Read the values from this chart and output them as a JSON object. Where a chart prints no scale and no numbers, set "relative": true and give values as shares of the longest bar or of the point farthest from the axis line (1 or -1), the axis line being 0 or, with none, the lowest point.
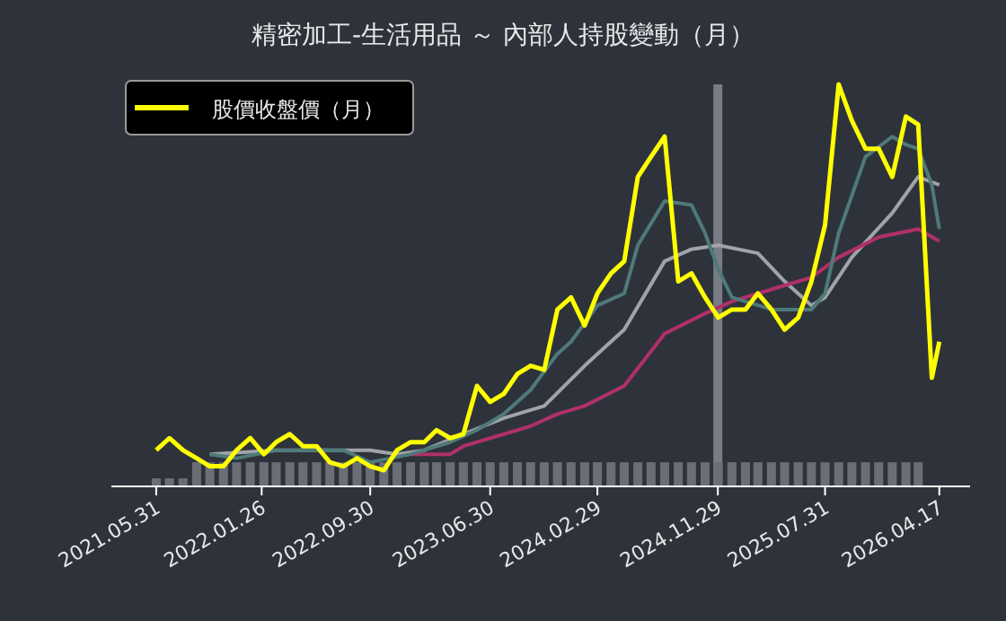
{
  "chart_data": {
    "type": "line",
    "title": "精密加工-生活用品 ～ 內部人持股變動（月）",
    "relative": true,
    "legend": "top left",
    "tick_labels": "x",
    "grid": false,
    "xlim": [
      "2021-02-18",
      "2026-06-26"
    ],
    "xticks": [
      {
        "value": "2021-05-31",
        "label": "2021.05.31"
      },
      {
        "value": "2022-01-26",
        "label": "2022.01.26"
      },
      {
        "value": "2022-09-30",
        "label": "2022.09.30"
      },
      {
        "value": "2023-06-30",
        "label": "2023.06.30"
      },
      {
        "value": "2024-02-29",
        "label": "2024.02.29"
      },
      {
        "value": "2024-11-29",
        "label": "2024.11.29"
      },
      {
        "value": "2025-07-31",
        "label": "2025.07.31"
      },
      {
        "value": "2026-04-17",
        "label": "2026.04.17"
      }
    ],
    "ref_lines": [
      {
        "axis": "x",
        "value": "2024-11-29",
        "color": "#787c84"
      }
    ],
    "series": [
      {
        "type": "bar",
        "color": "#6b6f75",
        "x": [
          "2021-05-31",
          "2021-06-30",
          "2021-07-31",
          "2021-08-31",
          "2021-09-30",
          "2021-10-31",
          "2021-11-30",
          "2021-12-31",
          "2022-01-31",
          "2022-02-28",
          "2022-03-31",
          "2022-04-30",
          "2022-05-31",
          "2022-06-30",
          "2022-07-31",
          "2022-08-31",
          "2022-09-30",
          "2022-10-31",
          "2022-11-30",
          "2022-12-31",
          "2023-01-31",
          "2023-02-28",
          "2023-03-31",
          "2023-04-30",
          "2023-05-31",
          "2023-06-30",
          "2023-07-31",
          "2023-08-31",
          "2023-09-30",
          "2023-10-31",
          "2023-11-30",
          "2023-12-31",
          "2024-01-31",
          "2024-02-29",
          "2024-03-31",
          "2024-04-30",
          "2024-05-31",
          "2024-06-30",
          "2024-07-31",
          "2024-08-31",
          "2024-09-30",
          "2024-10-31",
          "2024-11-30",
          "2024-12-31",
          "2025-01-31",
          "2025-02-28",
          "2025-03-31",
          "2025-04-30",
          "2025-05-31",
          "2025-06-30",
          "2025-07-31",
          "2025-08-31",
          "2025-09-30",
          "2025-10-31",
          "2025-11-30",
          "2025-12-31",
          "2026-01-31",
          "2026-02-28"
        ],
        "values": [
          0.02,
          0.02,
          0.02,
          0.06,
          0.06,
          0.06,
          0.06,
          0.06,
          0.06,
          0.06,
          0.06,
          0.06,
          0.06,
          0.06,
          0.06,
          0.06,
          0.06,
          0.06,
          0.06,
          0.06,
          0.06,
          0.06,
          0.06,
          0.06,
          0.06,
          0.06,
          0.06,
          0.06,
          0.06,
          0.06,
          0.06,
          0.06,
          0.06,
          0.06,
          0.06,
          0.06,
          0.06,
          0.06,
          0.06,
          0.06,
          0.06,
          0.06,
          0.06,
          0.06,
          0.06,
          0.06,
          0.06,
          0.06,
          0.06,
          0.06,
          0.06,
          0.06,
          0.06,
          0.06,
          0.06,
          0.06,
          0.06,
          0.06
        ]
      },
      {
        "type": "line",
        "color": "#a0a4a8",
        "x": [
          "2021-09-30",
          "2022-02-28",
          "2022-05-31",
          "2022-09-30",
          "2022-11-30",
          "2023-01-31",
          "2023-04-30",
          "2023-07-31",
          "2023-10-31",
          "2024-01-31",
          "2024-04-30",
          "2024-07-31",
          "2024-09-30",
          "2024-11-30",
          "2025-02-28",
          "2025-04-30",
          "2025-06-30",
          "2025-07-31",
          "2025-09-30",
          "2025-12-31",
          "2026-02-28",
          "2026-04-17"
        ],
        "values": [
          0.08,
          0.09,
          0.09,
          0.09,
          0.08,
          0.09,
          0.13,
          0.17,
          0.2,
          0.3,
          0.39,
          0.56,
          0.59,
          0.6,
          0.58,
          0.51,
          0.45,
          0.47,
          0.57,
          0.68,
          0.77,
          0.75
        ]
      },
      {
        "type": "line",
        "color": "#b0306a",
        "x": [
          "2022-12-31",
          "2023-03-31",
          "2023-04-30",
          "2023-07-31",
          "2023-09-30",
          "2023-11-30",
          "2024-01-31",
          "2024-04-30",
          "2024-07-31",
          "2024-10-31",
          "2024-12-31",
          "2025-03-31",
          "2025-06-30",
          "2025-08-31",
          "2025-11-30",
          "2026-02-28",
          "2026-04-17"
        ],
        "values": [
          0.08,
          0.08,
          0.1,
          0.13,
          0.15,
          0.18,
          0.2,
          0.25,
          0.38,
          0.43,
          0.46,
          0.49,
          0.52,
          0.57,
          0.62,
          0.64,
          0.61
        ]
      },
      {
        "type": "line",
        "color": "#4f7a7a",
        "x": [
          "2021-09-30",
          "2021-11-30",
          "2022-02-28",
          "2022-07-31",
          "2022-09-30",
          "2022-12-31",
          "2023-03-31",
          "2023-05-31",
          "2023-07-31",
          "2023-09-30",
          "2023-11-30",
          "2023-12-31",
          "2024-02-29",
          "2024-04-30",
          "2024-05-31",
          "2024-07-31",
          "2024-09-30",
          "2024-10-31",
          "2024-11-30",
          "2024-12-31",
          "2025-01-31",
          "2025-03-31",
          "2025-06-30",
          "2025-07-31",
          "2025-08-31",
          "2025-10-31",
          "2025-12-31",
          "2026-01-31",
          "2026-02-28",
          "2026-03-31",
          "2026-04-17"
        ],
        "values": [
          0.08,
          0.07,
          0.09,
          0.09,
          0.06,
          0.08,
          0.11,
          0.14,
          0.18,
          0.24,
          0.33,
          0.36,
          0.45,
          0.48,
          0.6,
          0.71,
          0.7,
          0.63,
          0.54,
          0.47,
          0.46,
          0.44,
          0.44,
          0.48,
          0.63,
          0.82,
          0.87,
          0.85,
          0.84,
          0.75,
          0.64
        ]
      },
      {
        "name": "股價收盤價（月）",
        "color": "#ffff00",
        "x": [
          "2021-05-31",
          "2021-06-30",
          "2021-07-31",
          "2021-08-31",
          "2021-09-30",
          "2021-10-31",
          "2021-11-30",
          "2021-12-31",
          "2022-01-31",
          "2022-02-28",
          "2022-03-31",
          "2022-04-30",
          "2022-05-31",
          "2022-06-30",
          "2022-07-31",
          "2022-08-31",
          "2022-09-30",
          "2022-10-31",
          "2022-11-30",
          "2022-12-31",
          "2023-01-31",
          "2023-02-28",
          "2023-03-31",
          "2023-04-30",
          "2023-05-31",
          "2023-06-30",
          "2023-07-31",
          "2023-08-31",
          "2023-09-30",
          "2023-10-31",
          "2023-11-30",
          "2023-12-31",
          "2024-01-31",
          "2024-02-29",
          "2024-03-31",
          "2024-04-30",
          "2024-05-31",
          "2024-06-30",
          "2024-07-31",
          "2024-08-31",
          "2024-09-30",
          "2024-10-31",
          "2024-11-30",
          "2024-12-31",
          "2025-01-31",
          "2025-02-28",
          "2025-03-31",
          "2025-04-30",
          "2025-05-31",
          "2025-06-30",
          "2025-07-31",
          "2025-08-31",
          "2025-09-30",
          "2025-10-31",
          "2025-11-30",
          "2025-12-31",
          "2026-01-31",
          "2026-02-28",
          "2026-03-31",
          "2026-04-17"
        ],
        "values": [
          0.09,
          0.12,
          0.09,
          0.07,
          0.05,
          0.05,
          0.09,
          0.12,
          0.08,
          0.11,
          0.13,
          0.1,
          0.1,
          0.06,
          0.05,
          0.07,
          0.05,
          0.04,
          0.09,
          0.11,
          0.11,
          0.14,
          0.12,
          0.13,
          0.25,
          0.21,
          0.23,
          0.28,
          0.3,
          0.29,
          0.44,
          0.47,
          0.4,
          0.48,
          0.53,
          0.56,
          0.77,
          0.82,
          0.87,
          0.51,
          0.53,
          0.47,
          0.42,
          0.44,
          0.44,
          0.48,
          0.44,
          0.39,
          0.42,
          0.51,
          0.65,
          1,
          0.91,
          0.84,
          0.84,
          0.77,
          0.92,
          0.9,
          0.27,
          0.36
        ]
      }
    ]
  }
}
